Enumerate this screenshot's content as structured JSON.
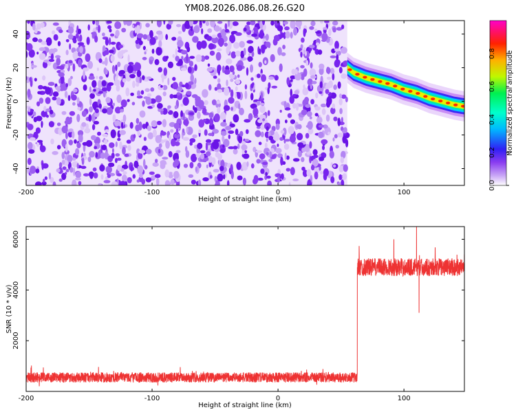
{
  "title": "YM08.2026.086.08.26.G20",
  "chart_data": [
    {
      "type": "heatmap",
      "xlabel": "Height of straight line (km)",
      "ylabel": "Frequency (Hz)",
      "xlim": [
        -200,
        148
      ],
      "ylim": [
        -50,
        48
      ],
      "xticks": [
        "-200",
        "-100",
        "0",
        "100"
      ],
      "yticks": [
        "-40",
        "-20",
        "0",
        "20",
        "40"
      ],
      "noise_region_x": [
        -200,
        55
      ],
      "ridge": {
        "x": [
          55,
          60,
          70,
          80,
          90,
          100,
          110,
          120,
          130,
          140,
          148
        ],
        "y": [
          20,
          17,
          14,
          12,
          10,
          7,
          5,
          2,
          0,
          -2,
          -3
        ]
      },
      "colorbar": {
        "label": "Normalized spectral amplitude",
        "range": [
          0,
          1
        ],
        "ticks": [
          "0.0",
          "0.2",
          "0.4",
          "0.6",
          "0.8"
        ]
      }
    },
    {
      "type": "line",
      "xlabel": "Height of straight line (km)",
      "ylabel": "SNR (10 * v/v)",
      "xlim": [
        -200,
        148
      ],
      "ylim": [
        0,
        6500
      ],
      "xticks": [
        "-200",
        "-100",
        "0",
        "100"
      ],
      "yticks": [
        "2000",
        "4000",
        "6000"
      ],
      "line_color": "#ee3333",
      "segments": [
        {
          "x_range": [
            -200,
            63
          ],
          "mean": 550,
          "spread": 400
        },
        {
          "x_range": [
            63,
            148
          ],
          "mean": 4900,
          "spread": 700
        }
      ],
      "spikes": [
        {
          "x": 92,
          "y": 6000
        },
        {
          "x": 110,
          "y": 6500
        },
        {
          "x": 112,
          "y": 3100
        }
      ]
    }
  ]
}
